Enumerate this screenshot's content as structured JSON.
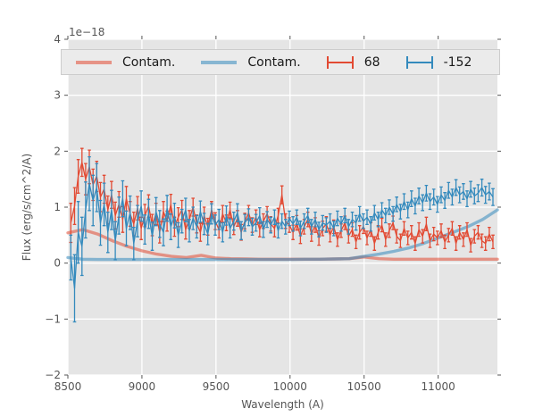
{
  "figure": {
    "offset_text": "1e−18",
    "xlabel": "Wavelength (A)",
    "ylabel": "Flux (erg/s/cm^2/A)"
  },
  "colors": {
    "figure_background": "#ffffff",
    "plot_background": "#e5e5e5",
    "grid": "#ffffff",
    "text": "#555555",
    "red": "#e24a33",
    "blue": "#348abd",
    "legend_background": "#ebebeb",
    "legend_border": "#cccccc"
  },
  "legend": {
    "entries": [
      {
        "label": "Contam.",
        "icon": "line-icon",
        "handle_color": "rgba(226,74,51,0.55)"
      },
      {
        "label": "Contam.",
        "icon": "line-icon",
        "handle_color": "rgba(52,138,189,0.55)"
      },
      {
        "label": "68",
        "icon": "errorbar-icon",
        "handle_color": "#e24a33"
      },
      {
        "label": "-152",
        "icon": "errorbar-icon",
        "handle_color": "#348abd"
      }
    ]
  },
  "chart_data": {
    "type": "line",
    "title": "",
    "xlabel": "Wavelength (A)",
    "ylabel": "Flux (erg/s/cm^2/A)",
    "y_offset_text": "1e−18",
    "y_unit_multiplier": 1e-18,
    "xlim": [
      8500,
      11400
    ],
    "ylim": [
      -2,
      4
    ],
    "x_ticks": [
      8500,
      9000,
      9500,
      10000,
      10500,
      11000
    ],
    "x_tick_labels": [
      "8500",
      "9000",
      "9500",
      "10000",
      "10500",
      "11000"
    ],
    "y_ticks": [
      -2,
      -1,
      0,
      1,
      2,
      3,
      4
    ],
    "y_tick_labels": [
      "−2",
      "−1",
      "0",
      "1",
      "2",
      "3",
      "4"
    ],
    "grid": true,
    "legend_position": "upper center, horizontal, full width",
    "series": [
      {
        "name": "Contam.",
        "type": "line",
        "color": "#e24a33",
        "alpha": 0.55,
        "x": [
          8500,
          8600,
          8700,
          8800,
          8900,
          9000,
          9100,
          9200,
          9300,
          9400,
          9500,
          9600,
          9700,
          9800,
          9900,
          10000,
          10100,
          10200,
          10300,
          10400,
          10500,
          10600,
          10700,
          10800,
          10900,
          11000,
          11100,
          11200,
          11300,
          11400
        ],
        "y": [
          0.54,
          0.6,
          0.52,
          0.4,
          0.3,
          0.22,
          0.16,
          0.12,
          0.1,
          0.14,
          0.09,
          0.08,
          0.075,
          0.07,
          0.07,
          0.07,
          0.07,
          0.07,
          0.075,
          0.08,
          0.11,
          0.08,
          0.07,
          0.07,
          0.07,
          0.07,
          0.07,
          0.07,
          0.07,
          0.07
        ]
      },
      {
        "name": "Contam.",
        "type": "line",
        "color": "#348abd",
        "alpha": 0.55,
        "x": [
          8500,
          8600,
          8700,
          8800,
          8900,
          9000,
          9100,
          9200,
          9300,
          9400,
          9500,
          9600,
          9700,
          9800,
          9900,
          10000,
          10100,
          10200,
          10300,
          10400,
          10500,
          10600,
          10700,
          10800,
          10900,
          11000,
          11100,
          11200,
          11300,
          11400
        ],
        "y": [
          0.1,
          0.07,
          0.065,
          0.065,
          0.065,
          0.065,
          0.065,
          0.065,
          0.065,
          0.065,
          0.065,
          0.065,
          0.065,
          0.065,
          0.065,
          0.065,
          0.07,
          0.07,
          0.075,
          0.08,
          0.12,
          0.16,
          0.21,
          0.27,
          0.35,
          0.45,
          0.55,
          0.65,
          0.78,
          0.95
        ]
      },
      {
        "name": "68",
        "type": "errorbar",
        "color": "#e24a33",
        "x_start": 8520,
        "x_step": 25,
        "y": [
          0.72,
          1.02,
          1.55,
          1.8,
          1.5,
          1.72,
          1.4,
          1.55,
          1.18,
          1.32,
          0.95,
          1.22,
          0.85,
          1.05,
          0.78,
          1.15,
          0.88,
          0.7,
          0.98,
          0.62,
          0.85,
          1.02,
          0.68,
          0.88,
          0.55,
          0.92,
          0.75,
          1.05,
          0.65,
          0.82,
          0.95,
          0.6,
          0.78,
          1.0,
          0.7,
          0.55,
          0.85,
          0.65,
          0.95,
          0.75,
          0.6,
          0.88,
          0.72,
          0.95,
          0.65,
          0.8,
          0.55,
          0.75,
          0.9,
          0.68,
          0.82,
          0.6,
          0.75,
          0.88,
          0.7,
          0.62,
          0.85,
          1.22,
          0.75,
          0.68,
          0.55,
          0.72,
          0.48,
          0.65,
          0.78,
          0.52,
          0.68,
          0.45,
          0.62,
          0.7,
          0.5,
          0.65,
          0.42,
          0.58,
          0.72,
          0.48,
          0.6,
          0.38,
          0.55,
          0.65,
          0.45,
          0.6,
          0.35,
          0.55,
          0.68,
          0.42,
          0.58,
          0.72,
          0.48,
          0.4,
          0.62,
          0.45,
          0.55,
          0.35,
          0.6,
          0.48,
          0.7,
          0.4,
          0.52,
          0.45,
          0.58,
          0.38,
          0.5,
          0.62,
          0.35,
          0.55,
          0.42,
          0.6,
          0.32,
          0.48,
          0.55,
          0.4,
          0.35,
          0.52,
          0.38
        ],
        "yerr": [
          0.35,
          0.33,
          0.3,
          0.25,
          0.28,
          0.3,
          0.28,
          0.27,
          0.26,
          0.25,
          0.25,
          0.24,
          0.24,
          0.23,
          0.23,
          0.22,
          0.22,
          0.21,
          0.21,
          0.2,
          0.2,
          0.2,
          0.19,
          0.19,
          0.19,
          0.18,
          0.18,
          0.18,
          0.17,
          0.17,
          0.17,
          0.17,
          0.16,
          0.16,
          0.16,
          0.16,
          0.15,
          0.15,
          0.15,
          0.15,
          0.15,
          0.15,
          0.14,
          0.14,
          0.14,
          0.14,
          0.14,
          0.14,
          0.13,
          0.13,
          0.13,
          0.13,
          0.13,
          0.13,
          0.13,
          0.15,
          0.13,
          0.16,
          0.13,
          0.13,
          0.13,
          0.13,
          0.13,
          0.13,
          0.13,
          0.13,
          0.13,
          0.13,
          0.13,
          0.13,
          0.12,
          0.12,
          0.12,
          0.12,
          0.12,
          0.12,
          0.12,
          0.12,
          0.12,
          0.12,
          0.12,
          0.12,
          0.12,
          0.12,
          0.12,
          0.12,
          0.12,
          0.12,
          0.12,
          0.12,
          0.12,
          0.12,
          0.12,
          0.12,
          0.12,
          0.12,
          0.12,
          0.12,
          0.12,
          0.12,
          0.12,
          0.12,
          0.12,
          0.12,
          0.12,
          0.12,
          0.12,
          0.12,
          0.12,
          0.12,
          0.12,
          0.12,
          0.12,
          0.12,
          0.12
        ]
      },
      {
        "name": "-152",
        "type": "errorbar",
        "color": "#348abd",
        "x_start": 8520,
        "x_step": 25,
        "y": [
          0.1,
          -0.45,
          0.55,
          0.3,
          0.95,
          1.42,
          1.12,
          1.35,
          0.72,
          1.05,
          0.55,
          0.95,
          0.4,
          0.85,
          1.15,
          0.62,
          0.9,
          0.35,
          0.75,
          1.02,
          0.6,
          0.88,
          0.48,
          0.92,
          0.7,
          0.55,
          0.98,
          0.65,
          0.85,
          0.5,
          0.75,
          0.95,
          0.58,
          0.8,
          0.65,
          0.92,
          0.7,
          0.52,
          0.88,
          0.68,
          0.78,
          0.55,
          0.85,
          0.62,
          0.75,
          0.9,
          0.58,
          0.72,
          0.82,
          0.65,
          0.72,
          0.85,
          0.6,
          0.78,
          0.68,
          0.82,
          0.58,
          0.75,
          0.65,
          0.8,
          0.7,
          0.82,
          0.62,
          0.75,
          0.85,
          0.65,
          0.78,
          0.6,
          0.72,
          0.68,
          0.75,
          0.62,
          0.8,
          0.7,
          0.85,
          0.65,
          0.78,
          0.72,
          0.88,
          0.75,
          0.82,
          0.7,
          0.9,
          0.78,
          0.95,
          0.85,
          1.0,
          0.88,
          1.05,
          0.92,
          1.1,
          0.95,
          1.15,
          1.02,
          1.2,
          1.08,
          1.25,
          1.1,
          1.18,
          1.05,
          1.22,
          1.12,
          1.3,
          1.18,
          1.35,
          1.22,
          1.28,
          1.15,
          1.32,
          1.2,
          1.25,
          1.35,
          1.22,
          1.28,
          1.18
        ],
        "yerr": [
          0.4,
          0.6,
          0.55,
          0.52,
          0.5,
          0.48,
          0.45,
          0.43,
          0.4,
          0.38,
          0.36,
          0.35,
          0.34,
          0.33,
          0.32,
          0.31,
          0.3,
          0.29,
          0.28,
          0.27,
          0.26,
          0.26,
          0.25,
          0.25,
          0.24,
          0.24,
          0.23,
          0.23,
          0.22,
          0.22,
          0.21,
          0.21,
          0.2,
          0.2,
          0.2,
          0.19,
          0.19,
          0.19,
          0.18,
          0.18,
          0.18,
          0.17,
          0.17,
          0.17,
          0.16,
          0.16,
          0.16,
          0.15,
          0.15,
          0.15,
          0.15,
          0.14,
          0.14,
          0.14,
          0.14,
          0.13,
          0.13,
          0.13,
          0.13,
          0.13,
          0.13,
          0.13,
          0.13,
          0.13,
          0.13,
          0.13,
          0.13,
          0.13,
          0.13,
          0.13,
          0.13,
          0.13,
          0.13,
          0.13,
          0.13,
          0.13,
          0.13,
          0.13,
          0.13,
          0.13,
          0.13,
          0.13,
          0.13,
          0.13,
          0.13,
          0.13,
          0.13,
          0.13,
          0.13,
          0.13,
          0.14,
          0.14,
          0.14,
          0.14,
          0.14,
          0.14,
          0.14,
          0.14,
          0.14,
          0.14,
          0.14,
          0.14,
          0.14,
          0.14,
          0.14,
          0.14,
          0.14,
          0.14,
          0.14,
          0.14,
          0.15,
          0.15,
          0.15,
          0.15,
          0.15
        ]
      }
    ]
  }
}
